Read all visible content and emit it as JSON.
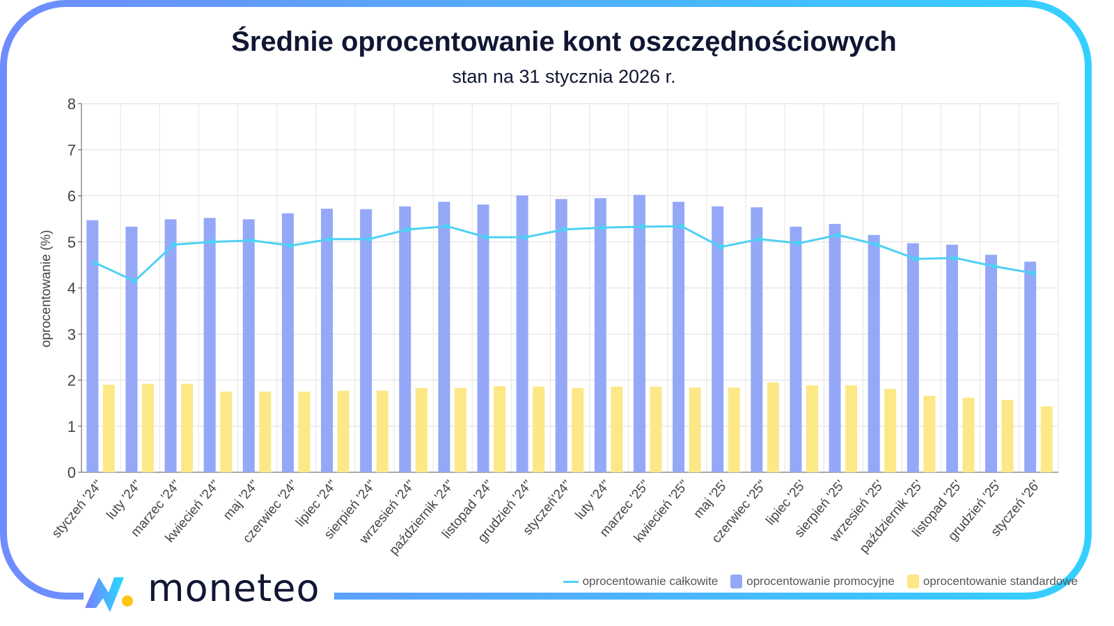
{
  "title": "Średnie oprocentowanie kont oszczędnościowych",
  "subtitle": "stan na 31 stycznia 2026 r.",
  "brand": "moneteo",
  "colors": {
    "frame_left": "#6f8cff",
    "frame_right": "#33d0ff",
    "promo": "#94a8f7",
    "standard": "#fde887",
    "total": "#4fd0f5"
  },
  "chart_data": {
    "type": "bar",
    "title": "Średnie oprocentowanie kont oszczędnościowych",
    "subtitle": "stan na 31 stycznia 2026 r.",
    "xlabel": "",
    "ylabel": "oprocentowanie (%)",
    "ylim": [
      0,
      8
    ],
    "yticks": [
      "0",
      "1",
      "2",
      "3",
      "4",
      "5",
      "6",
      "7",
      "8"
    ],
    "grid": true,
    "legend_position": "bottom-right",
    "categories": [
      "styczeń '24\"",
      "luty '24\"",
      "marzec '24\"",
      "kwiecień '24\"",
      "maj '24\"",
      "czerwiec '24\"",
      "lipiec '24\"",
      "sierpień '24\"",
      "wrzesień '24\"",
      "październik '24\"",
      "listopad '24\"",
      "grudzień '24\"",
      "styczeń'24\"",
      "luty '24\"",
      "marzec '25\"",
      "kwiecień '25\"",
      "maj '25'",
      "czerwiec '25\"",
      "lipiec '25'",
      "sierpień '25'",
      "wrzesień '25'",
      "październik '25'",
      "listopad '25'",
      "grudzień '25'",
      "styczeń '26'"
    ],
    "series": [
      {
        "name": "oprocentowanie promocyjne",
        "type": "bar",
        "values": [
          5.47,
          5.33,
          5.49,
          5.52,
          5.49,
          5.62,
          5.72,
          5.71,
          5.77,
          5.87,
          5.81,
          6.01,
          5.93,
          5.95,
          6.02,
          5.87,
          5.77,
          5.75,
          5.33,
          5.39,
          5.15,
          4.97,
          4.94,
          4.72,
          4.57
        ]
      },
      {
        "name": "oprocentowanie standardowe",
        "type": "bar",
        "values": [
          1.9,
          1.92,
          1.92,
          1.75,
          1.75,
          1.75,
          1.77,
          1.77,
          1.83,
          1.83,
          1.87,
          1.86,
          1.83,
          1.86,
          1.86,
          1.84,
          1.84,
          1.95,
          1.89,
          1.89,
          1.81,
          1.66,
          1.62,
          1.57,
          1.43
        ]
      },
      {
        "name": "oprocentowanie całkowite",
        "type": "line",
        "values": [
          4.54,
          4.15,
          4.94,
          5.0,
          5.03,
          4.92,
          5.06,
          5.06,
          5.27,
          5.34,
          5.1,
          5.1,
          5.27,
          5.31,
          5.33,
          5.34,
          4.89,
          5.06,
          4.97,
          5.15,
          4.94,
          4.63,
          4.65,
          4.47,
          4.32
        ]
      }
    ]
  }
}
